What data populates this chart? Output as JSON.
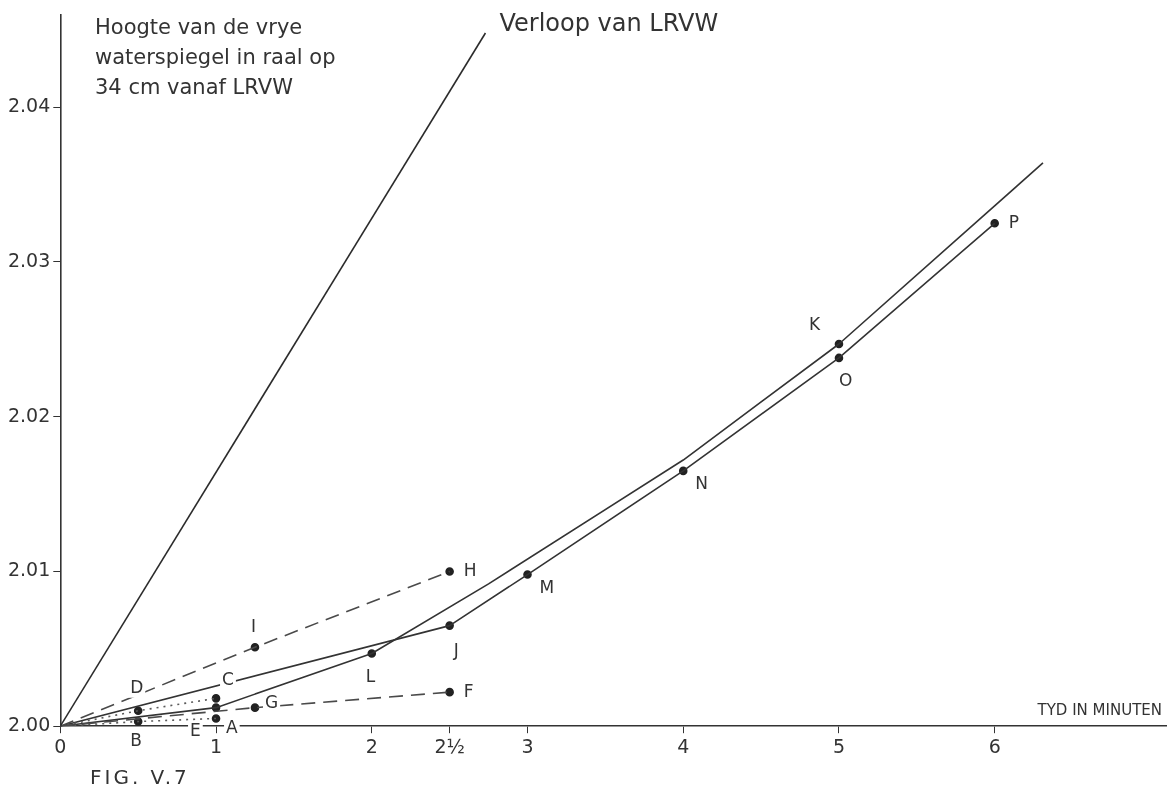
{
  "chart_data": {
    "type": "line",
    "xlabel": "TYD IN MINUTEN",
    "ylabel": "Hoogte van de vrye waterspiegel in raal op 34 cm vanaf LRVW",
    "xlim": [
      0,
      7.1
    ],
    "xticks": [
      0,
      1,
      2,
      {
        "value": 2.5,
        "label": "2½"
      },
      3,
      4,
      5,
      6
    ],
    "ylim": [
      2.0,
      2.046
    ],
    "yticks": [
      {
        "value": 2.0,
        "label": "2.00"
      },
      2.01,
      2.02,
      2.03,
      2.04
    ],
    "grid": false,
    "legend": false,
    "marker": "none",
    "series": [
      {
        "color": "#2b2b2b",
        "line_style": "solid",
        "x": [
          0,
          2.73
        ],
        "values": [
          2.0,
          2.0448
        ]
      },
      {
        "color": "#4a4a4a",
        "line_style": "dashed",
        "x": [
          0,
          1.25,
          2.5
        ],
        "values": [
          2.0,
          2.0051,
          2.01
        ]
      },
      {
        "color": "#4a4a4a",
        "line_style": "dashed",
        "x": [
          0,
          1.25,
          2.5
        ],
        "values": [
          2.0,
          2.0012,
          2.0022
        ]
      },
      {
        "color": "#5a5a5a",
        "line_style": "dotted",
        "x": [
          0,
          0.5,
          1
        ],
        "values": [
          2.0,
          2.0003,
          2.0005
        ]
      },
      {
        "color": "#5a5a5a",
        "line_style": "dotted",
        "x": [
          0,
          0.5,
          1
        ],
        "values": [
          2.0,
          2.001,
          2.0018
        ]
      },
      {
        "color": "#333333",
        "line_style": "solid",
        "x": [
          0,
          2.5,
          3,
          4,
          5,
          6
        ],
        "values": [
          2.0,
          2.0065,
          2.0098,
          2.0165,
          2.0238,
          2.0325
        ]
      },
      {
        "color": "#333333",
        "line_style": "solid",
        "x": [
          0,
          1,
          2,
          2.75,
          4,
          5,
          6.31
        ],
        "values": [
          2.0,
          2.0012,
          2.0047,
          2.0092,
          2.0172,
          2.0247,
          2.0364
        ]
      },
      {
        "type": "scatter",
        "color": "#222222",
        "marker": "circle",
        "x": [
          0.5,
          0.5,
          1,
          1,
          1,
          1.25,
          1.25,
          2,
          2.5,
          2.5,
          2.5,
          3,
          4,
          5,
          5,
          6
        ],
        "values": [
          2.0003,
          2.001,
          2.0005,
          2.0012,
          2.0018,
          2.0012,
          2.0051,
          2.0047,
          2.0022,
          2.0065,
          2.01,
          2.0098,
          2.0165,
          2.0247,
          2.0238,
          2.0325
        ]
      }
    ],
    "annotations": [
      {
        "text": "Verloop van LRVW",
        "x": 2.73,
        "y": 2.0448
      },
      {
        "text": "B",
        "x": 0.5,
        "y": 2.0003
      },
      {
        "text": "D",
        "x": 0.5,
        "y": 2.001
      },
      {
        "text": "A",
        "x": 1,
        "y": 2.0005
      },
      {
        "text": "E",
        "x": 1,
        "y": 2.0012
      },
      {
        "text": "C",
        "x": 1,
        "y": 2.0018
      },
      {
        "text": "G",
        "x": 1.25,
        "y": 2.0012
      },
      {
        "text": "I",
        "x": 1.25,
        "y": 2.0051
      },
      {
        "text": "L",
        "x": 2,
        "y": 2.0047
      },
      {
        "text": "F",
        "x": 2.5,
        "y": 2.0022
      },
      {
        "text": "J",
        "x": 2.5,
        "y": 2.0065
      },
      {
        "text": "H",
        "x": 2.5,
        "y": 2.01
      },
      {
        "text": "M",
        "x": 3,
        "y": 2.0098
      },
      {
        "text": "N",
        "x": 4,
        "y": 2.0165
      },
      {
        "text": "K",
        "x": 5,
        "y": 2.0247
      },
      {
        "text": "O",
        "x": 5,
        "y": 2.0238
      },
      {
        "text": "P",
        "x": 6,
        "y": 2.0325
      },
      "FIG. V.7"
    ]
  }
}
